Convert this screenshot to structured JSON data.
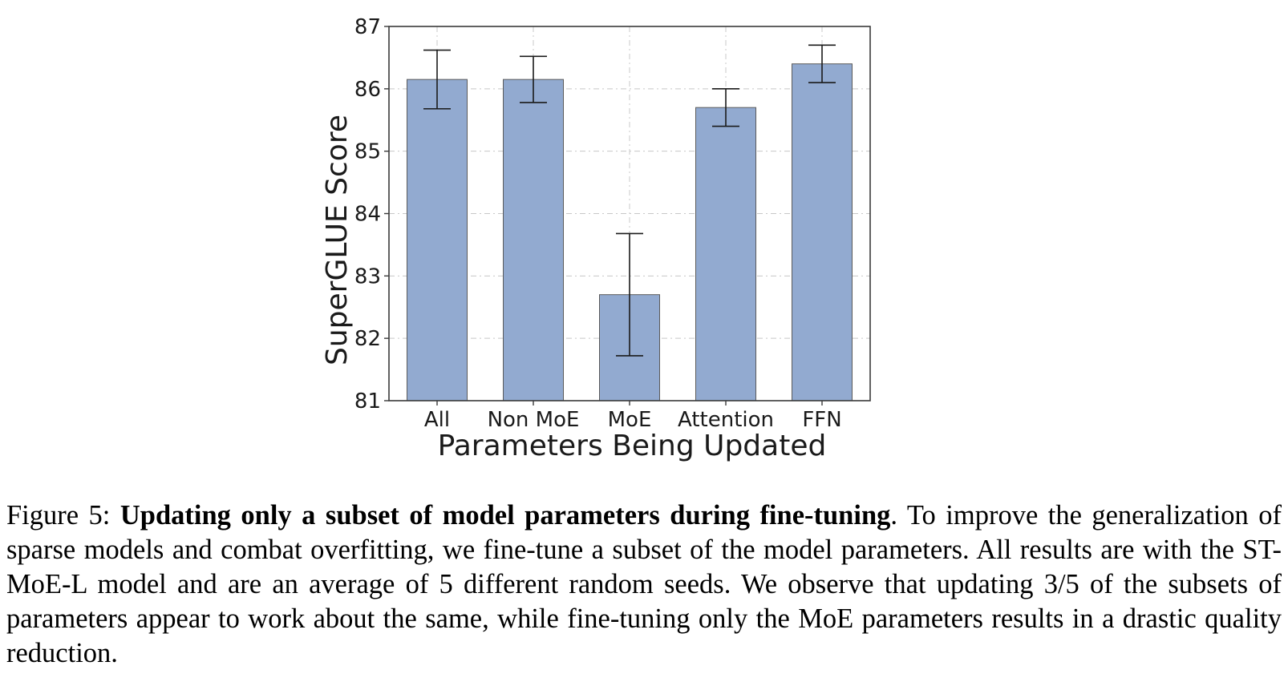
{
  "chart_data": {
    "type": "bar",
    "categories": [
      "All",
      "Non MoE",
      "MoE",
      "Attention",
      "FFN"
    ],
    "values": [
      86.15,
      86.15,
      82.7,
      85.7,
      86.4
    ],
    "error": [
      0.47,
      0.37,
      0.98,
      0.3,
      0.3
    ],
    "xlabel": "Parameters Being Updated",
    "ylabel": "SuperGLUE Score",
    "ylim": [
      81,
      87
    ],
    "yticks": [
      81,
      82,
      83,
      84,
      85,
      86,
      87
    ],
    "grid": true,
    "bar_color": "#92aad0",
    "bar_edge_color": "#5a5a5a"
  },
  "caption": {
    "label": "Figure 5: ",
    "bold": "Updating only a subset of model parameters during fine-tuning",
    "text": ". To improve the generalization of sparse models and combat overfitting, we fine-tune a subset of the model parameters. All results are with the ST-MoE-L model and are an average of 5 different random seeds. We observe that updating 3/5 of the subsets of parameters appear to work about the same, while fine-tuning only the MoE parameters results in a drastic quality reduction."
  }
}
